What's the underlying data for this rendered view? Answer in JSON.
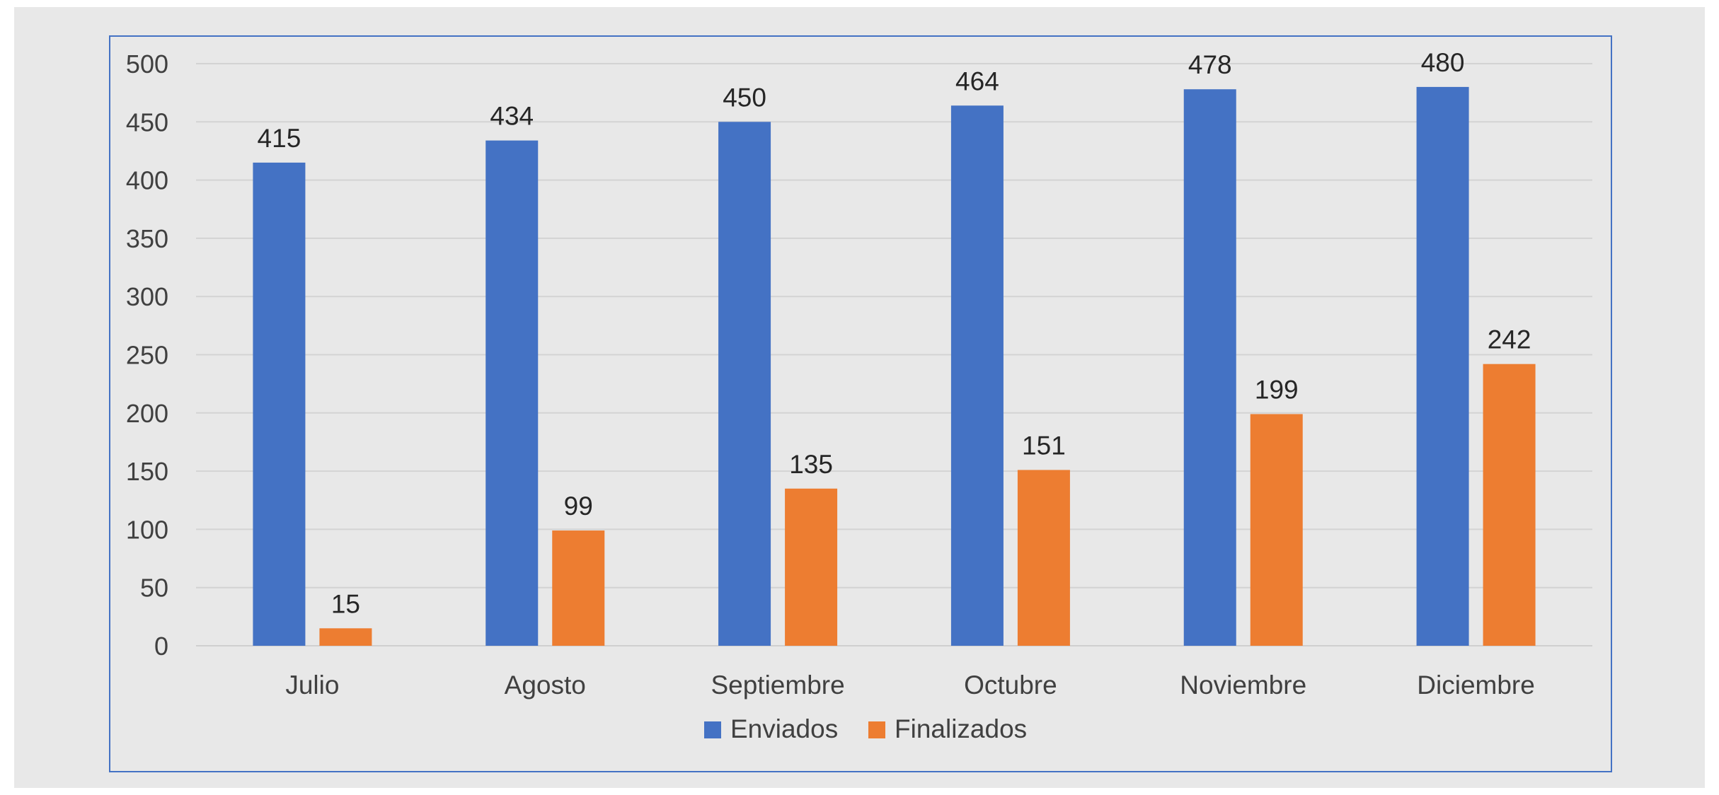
{
  "chart_data": {
    "type": "bar",
    "categories": [
      "Julio",
      "Agosto",
      "Septiembre",
      "Octubre",
      "Noviembre",
      "Diciembre"
    ],
    "series": [
      {
        "name": "Enviados",
        "color": "#4472c4",
        "values": [
          415,
          434,
          450,
          464,
          478,
          480
        ]
      },
      {
        "name": "Finalizados",
        "color": "#ed7d31",
        "values": [
          15,
          99,
          135,
          151,
          199,
          242
        ]
      }
    ],
    "ylim": [
      0,
      500
    ],
    "yticks": [
      0,
      50,
      100,
      150,
      200,
      250,
      300,
      350,
      400,
      450,
      500
    ],
    "grid": true,
    "legend_position": "bottom",
    "data_labels": true
  }
}
